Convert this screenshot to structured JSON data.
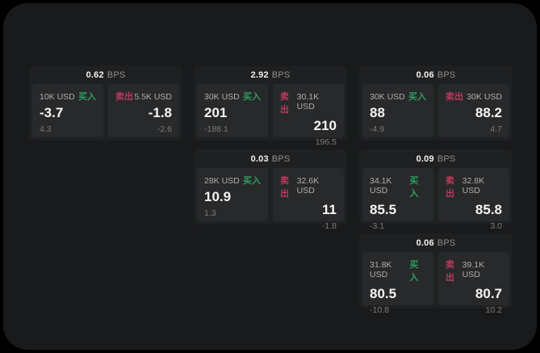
{
  "labels": {
    "bps": "BPS",
    "buy": "买入",
    "sell": "卖出"
  },
  "colors": {
    "outer_bg": "#000000",
    "panel_bg": "#191a1b",
    "card_bg": "#1f2021",
    "cell_bg": "#28292b",
    "text_primary": "#f5f5f5",
    "text_secondary": "#aeaeae",
    "text_muted": "#7c7c7c",
    "buy_green": "#2f9e5f",
    "sell_red": "#bc3a5e"
  },
  "cards": [
    {
      "bps": "0.62",
      "buy": {
        "amount": "10K USD",
        "price": "-3.7",
        "delta": "4.3"
      },
      "sell": {
        "amount": "5.5K USD",
        "price": "-1.8",
        "delta": "-2.6"
      }
    },
    {
      "bps": "2.92",
      "buy": {
        "amount": "30K USD",
        "price": "201",
        "delta": "-188.1"
      },
      "sell": {
        "amount": "30.1K USD",
        "price": "210",
        "delta": "196.5"
      }
    },
    {
      "bps": "0.06",
      "buy": {
        "amount": "30K USD",
        "price": "88",
        "delta": "-4.9"
      },
      "sell": {
        "amount": "30K USD",
        "price": "88.2",
        "delta": "4.7"
      }
    },
    {
      "bps": "0.03",
      "buy": {
        "amount": "28K USD",
        "price": "10.9",
        "delta": "1.3"
      },
      "sell": {
        "amount": "32.6K USD",
        "price": "11",
        "delta": "-1.8"
      }
    },
    {
      "bps": "0.09",
      "buy": {
        "amount": "34.1K USD",
        "price": "85.5",
        "delta": "-3.1"
      },
      "sell": {
        "amount": "32.8K USD",
        "price": "85.8",
        "delta": "3.0"
      }
    },
    {
      "bps": "0.06",
      "buy": {
        "amount": "31.8K USD",
        "price": "80.5",
        "delta": "-10.8"
      },
      "sell": {
        "amount": "39.1K USD",
        "price": "80.7",
        "delta": "10.2"
      }
    }
  ]
}
